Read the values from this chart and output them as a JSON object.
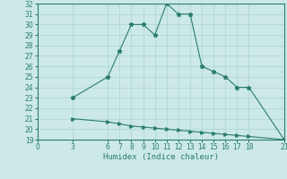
{
  "xlabel": "Humidex (Indice chaleur)",
  "ylabel": "",
  "bg_color": "#cce8e8",
  "line_color": "#2a7d6e",
  "line1_x": [
    3,
    6,
    7,
    8,
    9,
    10,
    11,
    12,
    13,
    14,
    15,
    16,
    17,
    18,
    21
  ],
  "line1_y": [
    23,
    25,
    27.5,
    30,
    30,
    29,
    32,
    31,
    31,
    26,
    25.5,
    25,
    24,
    24,
    19
  ],
  "line2_x": [
    3,
    6,
    7,
    8,
    9,
    10,
    11,
    12,
    13,
    14,
    15,
    16,
    17,
    18,
    21
  ],
  "line2_y": [
    21,
    20.7,
    20.5,
    20.3,
    20.2,
    20.1,
    20.0,
    19.9,
    19.8,
    19.7,
    19.6,
    19.5,
    19.4,
    19.3,
    19
  ],
  "xlim": [
    0,
    21
  ],
  "ylim": [
    19,
    32
  ],
  "xticks": [
    0,
    3,
    6,
    7,
    8,
    9,
    10,
    11,
    12,
    13,
    14,
    15,
    16,
    17,
    18,
    21
  ],
  "yticks": [
    19,
    20,
    21,
    22,
    23,
    24,
    25,
    26,
    27,
    28,
    29,
    30,
    31,
    32
  ],
  "grid_color": "#aad4d4",
  "tick_fontsize": 5.5,
  "xlabel_fontsize": 6.5,
  "linewidth": 0.8,
  "markersize1": 3.5,
  "markersize2": 2.5
}
